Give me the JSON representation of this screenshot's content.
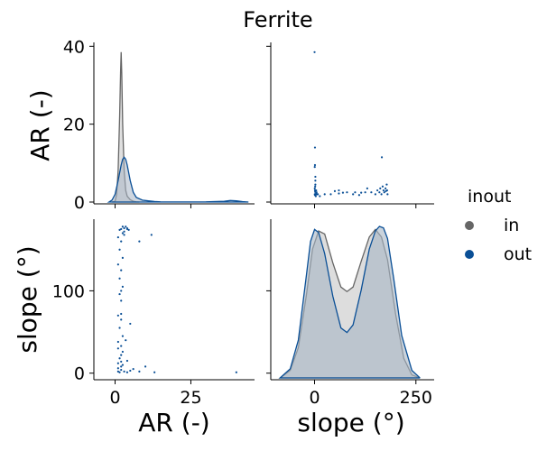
{
  "chart_data": {
    "type": "scatter",
    "kind": "pairplot",
    "title": "Ferrite",
    "variables": [
      "AR (-)",
      "slope (°)"
    ],
    "hue": "inout",
    "legend": {
      "title": "inout",
      "placement": "right",
      "entries": [
        {
          "label": "in",
          "color": "#666666"
        },
        {
          "label": "out",
          "color": "#0a4f96"
        }
      ]
    },
    "colors": {
      "in_line": "#666666",
      "in_fill": "#d9d9d9",
      "out_line": "#0a4f96",
      "out_fill": "#a7b5c5",
      "axis": "#000000"
    },
    "axes": {
      "AR": {
        "label": "AR (-)",
        "lim": [
          -7,
          46
        ],
        "ticks": [
          0,
          25
        ],
        "diag_ylim": [
          0,
          41
        ],
        "diag_ticks": [
          0,
          20,
          40
        ]
      },
      "slope": {
        "label": "slope (°)",
        "lim": [
          -108,
          295
        ],
        "ticks": [
          0,
          250
        ],
        "scatter_ylim": [
          -8,
          187
        ],
        "scatter_ticks": [
          0,
          100
        ]
      }
    },
    "kde": {
      "AR": {
        "in": {
          "x": [
            -1,
            0,
            0.5,
            1,
            1.5,
            1.8,
            2,
            2.2,
            2.5,
            3,
            3.5,
            4,
            5,
            6,
            7,
            8
          ],
          "y": [
            0,
            0.2,
            2,
            8,
            22,
            33,
            38.5,
            33,
            20,
            8,
            3,
            1.5,
            0.6,
            0.2,
            0.05,
            0
          ]
        },
        "out": {
          "x": [
            -2,
            -1,
            0,
            1,
            2,
            2.5,
            3,
            3.5,
            4,
            5,
            6,
            7,
            9,
            11,
            13,
            15,
            20,
            25,
            30,
            36,
            38,
            40,
            42,
            44
          ],
          "y": [
            0,
            0.5,
            2,
            5.5,
            9.5,
            11,
            11.5,
            11,
            9.5,
            5.5,
            2.5,
            1.2,
            0.5,
            0.3,
            0.15,
            0.05,
            0.02,
            0.02,
            0.05,
            0.2,
            0.4,
            0.3,
            0.1,
            0
          ]
        }
      },
      "slope": {
        "in": {
          "x": [
            -85,
            -60,
            -40,
            -20,
            -5,
            10,
            25,
            45,
            65,
            80,
            95,
            115,
            135,
            150,
            165,
            180,
            200,
            220,
            240,
            260
          ],
          "y": [
            0,
            0.05,
            0.2,
            0.55,
            0.85,
            0.97,
            0.95,
            0.76,
            0.6,
            0.57,
            0.6,
            0.77,
            0.93,
            0.98,
            0.93,
            0.78,
            0.42,
            0.13,
            0.02,
            0
          ]
        },
        "out": {
          "x": [
            -85,
            -60,
            -40,
            -20,
            -10,
            0,
            10,
            25,
            45,
            65,
            80,
            95,
            115,
            135,
            150,
            160,
            170,
            180,
            195,
            215,
            240,
            260
          ],
          "y": [
            0,
            0.06,
            0.25,
            0.68,
            0.9,
            0.98,
            0.96,
            0.82,
            0.54,
            0.33,
            0.3,
            0.35,
            0.58,
            0.85,
            0.97,
            1.0,
            0.99,
            0.92,
            0.66,
            0.28,
            0.05,
            0
          ]
        }
      }
    },
    "scatter": {
      "slope_vs_AR": [
        [
          0.5,
          2
        ],
        [
          1,
          1.8
        ],
        [
          1,
          3
        ],
        [
          1.5,
          2.6
        ],
        [
          2,
          2
        ],
        [
          2.5,
          3
        ],
        [
          0.5,
          3.5
        ],
        [
          3,
          2
        ],
        [
          3,
          1.5
        ],
        [
          4,
          3
        ],
        [
          5,
          2.5
        ],
        [
          8,
          2
        ],
        [
          13,
          1.5
        ],
        [
          1.5,
          4
        ],
        [
          2,
          4.5
        ],
        [
          6,
          2
        ],
        [
          4,
          2.2
        ],
        [
          2,
          6.5
        ],
        [
          0.5,
          9
        ],
        [
          1,
          9.5
        ],
        [
          1,
          14
        ],
        [
          0,
          38.5
        ],
        [
          2,
          5.5
        ],
        [
          25,
          2
        ],
        [
          40,
          2
        ],
        [
          60,
          3
        ],
        [
          60,
          2.2
        ],
        [
          80,
          2.5
        ],
        [
          95,
          2
        ],
        [
          100,
          2.5
        ],
        [
          110,
          1.8
        ],
        [
          115,
          2.4
        ],
        [
          125,
          2.5
        ],
        [
          130,
          3.5
        ],
        [
          140,
          2.5
        ],
        [
          150,
          2
        ],
        [
          155,
          3
        ],
        [
          160,
          2.5
        ],
        [
          162,
          3.5
        ],
        [
          165,
          2
        ],
        [
          168,
          4
        ],
        [
          170,
          3
        ],
        [
          172,
          2.5
        ],
        [
          175,
          3.5
        ],
        [
          178,
          4.5
        ],
        [
          179,
          3
        ],
        [
          180,
          2
        ],
        [
          176,
          2.8
        ],
        [
          166,
          11.5
        ],
        [
          50,
          2.8
        ],
        [
          70,
          2.4
        ]
      ],
      "AR_vs_slope": [
        [
          1,
          2
        ],
        [
          1.5,
          1
        ],
        [
          2,
          4
        ],
        [
          1,
          6
        ],
        [
          2,
          8
        ],
        [
          2.5,
          10
        ],
        [
          1,
          12
        ],
        [
          2,
          14
        ],
        [
          1.5,
          18
        ],
        [
          2,
          22
        ],
        [
          2.5,
          26
        ],
        [
          1,
          30
        ],
        [
          2,
          33
        ],
        [
          1,
          38
        ],
        [
          2.5,
          45
        ],
        [
          1.5,
          55
        ],
        [
          2,
          65
        ],
        [
          1,
          70
        ],
        [
          2,
          72
        ],
        [
          2,
          88
        ],
        [
          1.5,
          96
        ],
        [
          2,
          100
        ],
        [
          2.5,
          105
        ],
        [
          1.5,
          115
        ],
        [
          2,
          125
        ],
        [
          1,
          132
        ],
        [
          2.5,
          140
        ],
        [
          1.5,
          150
        ],
        [
          2,
          160
        ],
        [
          1,
          165
        ],
        [
          2.5,
          170
        ],
        [
          3,
          172
        ],
        [
          2,
          175
        ],
        [
          3,
          176
        ],
        [
          4,
          175
        ],
        [
          2.5,
          178
        ],
        [
          3.5,
          178
        ],
        [
          1.5,
          174
        ],
        [
          4.5,
          174
        ],
        [
          4,
          176
        ],
        [
          3,
          168
        ],
        [
          8,
          160
        ],
        [
          12,
          168
        ],
        [
          3,
          2
        ],
        [
          4,
          1
        ],
        [
          5,
          3
        ],
        [
          6,
          5
        ],
        [
          8,
          2
        ],
        [
          10,
          8
        ],
        [
          13,
          1
        ],
        [
          40,
          1
        ],
        [
          5,
          60
        ],
        [
          3.5,
          40
        ],
        [
          4,
          15
        ]
      ]
    }
  }
}
